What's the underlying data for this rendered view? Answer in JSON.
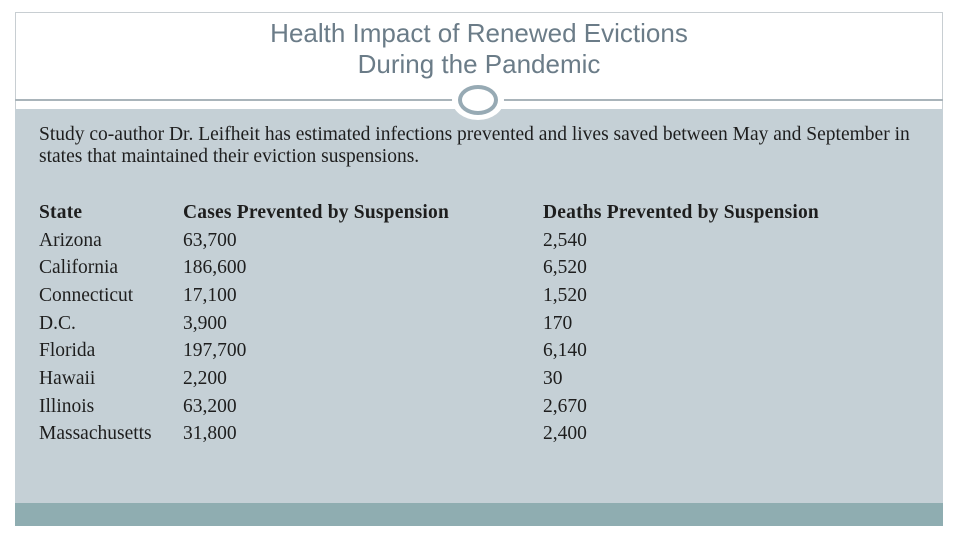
{
  "title": {
    "line1": "Health Impact of Renewed Evictions",
    "line2": "During the Pandemic"
  },
  "intro": "Study co-author Dr. Leifheit has estimated infections prevented and lives saved between May and September in states that maintained their eviction suspensions.",
  "table": {
    "headers": [
      "State",
      "Cases Prevented by Suspension",
      "Deaths Prevented by Suspension"
    ],
    "rows": [
      [
        "Arizona",
        "63,700",
        "2,540"
      ],
      [
        "California",
        "186,600",
        "6,520"
      ],
      [
        "Connecticut",
        "17,100",
        "1,520"
      ],
      [
        "D.C.",
        "3,900",
        "170"
      ],
      [
        "Florida",
        "197,700",
        "6,140"
      ],
      [
        "Hawaii",
        "2,200",
        "30"
      ],
      [
        "Illinois",
        "63,200",
        "2,670"
      ],
      [
        "Massachusetts",
        "31,800",
        "2,400"
      ]
    ]
  }
}
